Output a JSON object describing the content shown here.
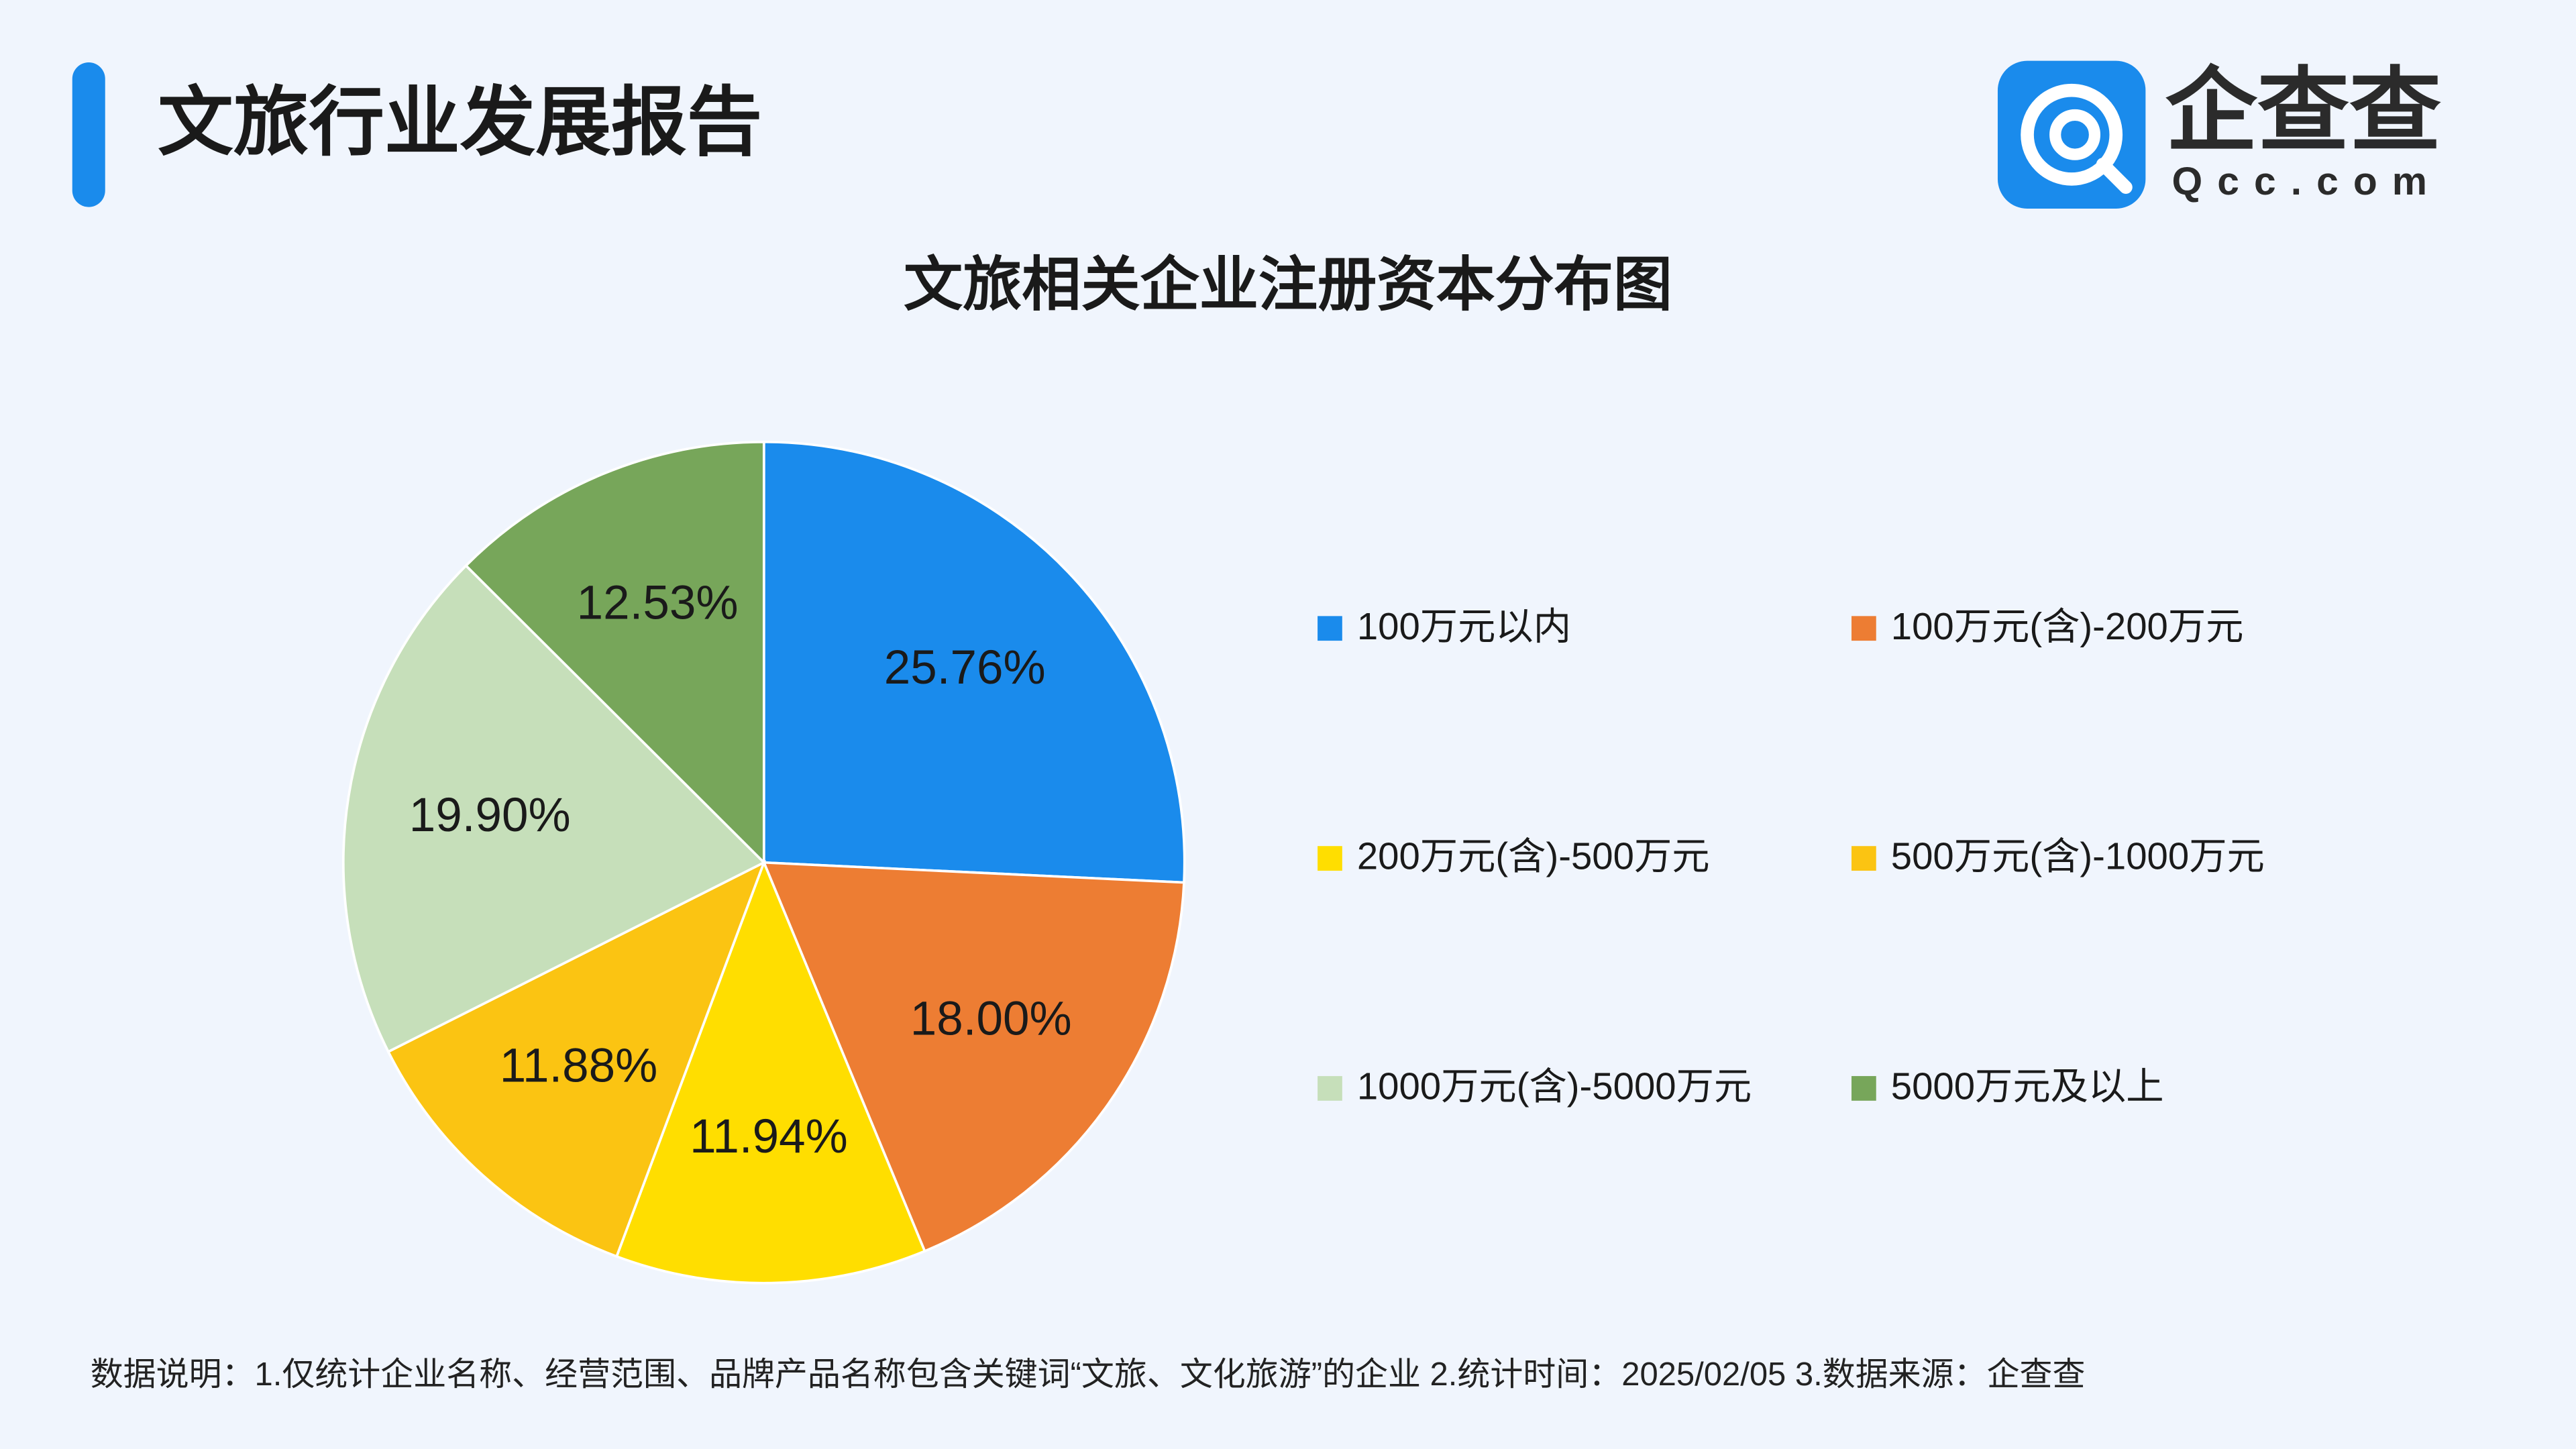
{
  "header": {
    "title": "文旅行业发展报告",
    "logo_name": "企查查",
    "logo_domain": "Qcc.com"
  },
  "chart_data": {
    "type": "pie",
    "title": "文旅相关企业注册资本分布图",
    "categories": [
      "100万元以内",
      "100万元(含)-200万元",
      "200万元(含)-500万元",
      "500万元(含)-1000万元",
      "1000万元(含)-5000万元",
      "5000万元及以上"
    ],
    "values": [
      25.76,
      18.0,
      11.94,
      11.88,
      19.9,
      12.53
    ],
    "value_labels": [
      "25.76%",
      "18.00%",
      "11.94%",
      "11.88%",
      "19.90%",
      "12.53%"
    ],
    "colors": [
      "#1a8bec",
      "#ed7d33",
      "#ffde00",
      "#fbc412",
      "#c6dfba",
      "#77a65a"
    ]
  },
  "footer": {
    "note": "数据说明：1.仅统计企业名称、经营范围、品牌产品名称包含关键词“文旅、文化旅游”的企业   2.统计时间：2025/02/05   3.数据来源：企查查"
  }
}
